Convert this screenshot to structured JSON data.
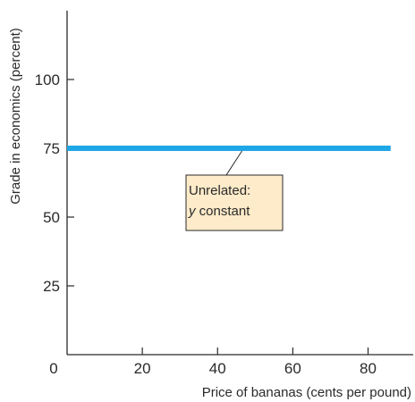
{
  "chart_data": {
    "type": "line",
    "title": "",
    "xlabel": "Price of bananas (cents per pound)",
    "ylabel": "Grade in economics (percent)",
    "xlim": [
      0,
      92
    ],
    "ylim": [
      0,
      125
    ],
    "x_ticks": [
      20,
      40,
      60,
      80
    ],
    "y_ticks": [
      25,
      50,
      75,
      100
    ],
    "origin_label": "0",
    "grid": false,
    "legend": "none",
    "series": [
      {
        "x": [
          0,
          86
        ],
        "y": [
          75,
          75
        ],
        "color": "#1ea7e6"
      }
    ],
    "annotation": {
      "line1": "Unrelated:",
      "line2_var": "y",
      "line2_rest": " constant",
      "anchor": {
        "x": 46,
        "y": 75
      },
      "box_fill": "#fdebc9",
      "box_stroke": "#2a2a2a"
    }
  }
}
